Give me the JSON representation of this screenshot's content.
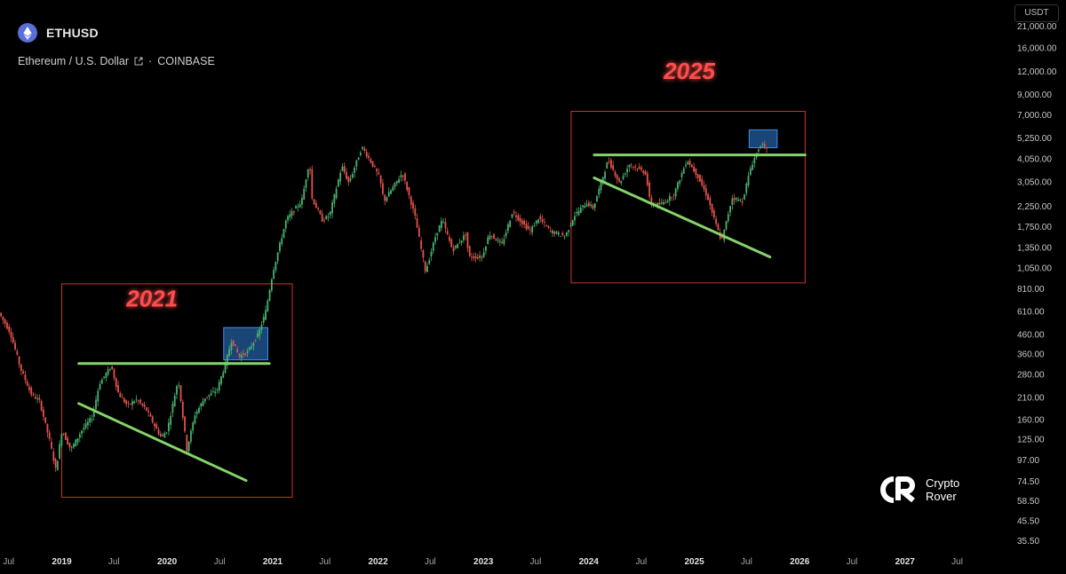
{
  "header": {
    "symbol": "ETHUSD",
    "description": "Ethereum / U.S. Dollar",
    "exchange": "COINBASE",
    "currency_badge": "USDT",
    "logo_icon": "ethereum-icon"
  },
  "watermark": {
    "line1": "Crypto",
    "line2": "Rover",
    "logo_icon": "crypto-rover-logo"
  },
  "colors": {
    "up": "#49b26e",
    "down": "#e5534b",
    "trend": "#84d46a",
    "box": "#c8352f",
    "zone": "#2f7fd8",
    "label": "#ff4d4d"
  },
  "chart_data": {
    "type": "candlestick",
    "scale": "log",
    "xlim": [
      "2018-06-01",
      "2027-10-15"
    ],
    "ylim": [
      31,
      26000
    ],
    "y_ticks": [
      {
        "v": 21000,
        "l": "21,000.00"
      },
      {
        "v": 16000,
        "l": "16,000.00"
      },
      {
        "v": 12000,
        "l": "12,000.00"
      },
      {
        "v": 9000,
        "l": "9,000.00"
      },
      {
        "v": 7000,
        "l": "7,000.00"
      },
      {
        "v": 5250,
        "l": "5,250.00"
      },
      {
        "v": 4050,
        "l": "4,050.00"
      },
      {
        "v": 3050,
        "l": "3,050.00"
      },
      {
        "v": 2250,
        "l": "2,250.00"
      },
      {
        "v": 1750,
        "l": "1,750.00"
      },
      {
        "v": 1350,
        "l": "1,350.00"
      },
      {
        "v": 1050,
        "l": "1,050.00"
      },
      {
        "v": 810,
        "l": "810.00"
      },
      {
        "v": 610,
        "l": "610.00"
      },
      {
        "v": 460,
        "l": "460.00"
      },
      {
        "v": 360,
        "l": "360.00"
      },
      {
        "v": 280,
        "l": "280.00"
      },
      {
        "v": 210,
        "l": "210.00"
      },
      {
        "v": 160,
        "l": "160.00"
      },
      {
        "v": 125,
        "l": "125.00"
      },
      {
        "v": 97,
        "l": "97.00"
      },
      {
        "v": 74.5,
        "l": "74.50"
      },
      {
        "v": 58.5,
        "l": "58.50"
      },
      {
        "v": 45.5,
        "l": "45.50"
      },
      {
        "v": 35.5,
        "l": "35.50"
      }
    ],
    "x_ticks": [
      {
        "t": "2018-07-01",
        "l": "Jul",
        "bold": false
      },
      {
        "t": "2019-01-01",
        "l": "2019",
        "bold": true
      },
      {
        "t": "2019-07-01",
        "l": "Jul",
        "bold": false
      },
      {
        "t": "2020-01-01",
        "l": "2020",
        "bold": true
      },
      {
        "t": "2020-07-01",
        "l": "Jul",
        "bold": false
      },
      {
        "t": "2021-01-01",
        "l": "2021",
        "bold": true
      },
      {
        "t": "2021-07-01",
        "l": "Jul",
        "bold": false
      },
      {
        "t": "2022-01-01",
        "l": "2022",
        "bold": true
      },
      {
        "t": "2022-07-01",
        "l": "Jul",
        "bold": false
      },
      {
        "t": "2023-01-01",
        "l": "2023",
        "bold": true
      },
      {
        "t": "2023-07-01",
        "l": "Jul",
        "bold": false
      },
      {
        "t": "2024-01-01",
        "l": "2024",
        "bold": true
      },
      {
        "t": "2024-07-01",
        "l": "Jul",
        "bold": false
      },
      {
        "t": "2025-01-01",
        "l": "2025",
        "bold": true
      },
      {
        "t": "2025-07-01",
        "l": "Jul",
        "bold": false
      },
      {
        "t": "2026-01-01",
        "l": "2026",
        "bold": true
      },
      {
        "t": "2026-07-01",
        "l": "Jul",
        "bold": false
      },
      {
        "t": "2027-01-01",
        "l": "2027",
        "bold": true
      },
      {
        "t": "2027-07-01",
        "l": "Jul",
        "bold": false
      }
    ],
    "price_path": [
      [
        "2018-06-01",
        600
      ],
      [
        "2018-07-10",
        470
      ],
      [
        "2018-08-15",
        300
      ],
      [
        "2018-09-20",
        220
      ],
      [
        "2018-10-20",
        200
      ],
      [
        "2018-11-25",
        120
      ],
      [
        "2018-12-15",
        85
      ],
      [
        "2019-01-05",
        140
      ],
      [
        "2019-02-05",
        110
      ],
      [
        "2019-03-15",
        140
      ],
      [
        "2019-04-20",
        165
      ],
      [
        "2019-05-15",
        250
      ],
      [
        "2019-06-25",
        310
      ],
      [
        "2019-07-20",
        220
      ],
      [
        "2019-08-20",
        190
      ],
      [
        "2019-09-20",
        205
      ],
      [
        "2019-10-25",
        180
      ],
      [
        "2019-11-20",
        150
      ],
      [
        "2019-12-15",
        128
      ],
      [
        "2020-01-05",
        140
      ],
      [
        "2020-02-12",
        265
      ],
      [
        "2020-03-13",
        110
      ],
      [
        "2020-04-10",
        170
      ],
      [
        "2020-05-15",
        210
      ],
      [
        "2020-06-25",
        230
      ],
      [
        "2020-07-25",
        320
      ],
      [
        "2020-08-15",
        430
      ],
      [
        "2020-09-10",
        350
      ],
      [
        "2020-10-10",
        370
      ],
      [
        "2020-11-15",
        460
      ],
      [
        "2020-12-10",
        600
      ],
      [
        "2021-01-05",
        1000
      ],
      [
        "2021-02-20",
        1900
      ],
      [
        "2021-04-15",
        2400
      ],
      [
        "2021-05-12",
        4000
      ],
      [
        "2021-05-20",
        2500
      ],
      [
        "2021-06-25",
        1900
      ],
      [
        "2021-07-20",
        2000
      ],
      [
        "2021-09-01",
        3700
      ],
      [
        "2021-09-25",
        3000
      ],
      [
        "2021-11-10",
        4700
      ],
      [
        "2021-12-15",
        3800
      ],
      [
        "2022-01-10",
        3200
      ],
      [
        "2022-01-25",
        2400
      ],
      [
        "2022-03-30",
        3400
      ],
      [
        "2022-05-12",
        2000
      ],
      [
        "2022-06-18",
        1000
      ],
      [
        "2022-07-25",
        1600
      ],
      [
        "2022-08-15",
        1900
      ],
      [
        "2022-09-20",
        1300
      ],
      [
        "2022-11-05",
        1600
      ],
      [
        "2022-11-15",
        1200
      ],
      [
        "2022-12-30",
        1200
      ],
      [
        "2023-01-25",
        1600
      ],
      [
        "2023-03-10",
        1400
      ],
      [
        "2023-04-15",
        2100
      ],
      [
        "2023-06-15",
        1650
      ],
      [
        "2023-07-15",
        1950
      ],
      [
        "2023-08-25",
        1650
      ],
      [
        "2023-10-15",
        1550
      ],
      [
        "2023-11-15",
        2000
      ],
      [
        "2023-12-28",
        2350
      ],
      [
        "2024-01-20",
        2200
      ],
      [
        "2024-03-12",
        4000
      ],
      [
        "2024-04-20",
        3000
      ],
      [
        "2024-05-25",
        3800
      ],
      [
        "2024-07-20",
        3400
      ],
      [
        "2024-08-05",
        2300
      ],
      [
        "2024-09-10",
        2300
      ],
      [
        "2024-10-25",
        2600
      ],
      [
        "2024-12-10",
        4000
      ],
      [
        "2025-01-15",
        3300
      ],
      [
        "2025-02-20",
        2500
      ],
      [
        "2025-03-15",
        1900
      ],
      [
        "2025-04-09",
        1450
      ],
      [
        "2025-05-15",
        2500
      ],
      [
        "2025-06-20",
        2400
      ],
      [
        "2025-07-20",
        3700
      ],
      [
        "2025-08-15",
        4600
      ],
      [
        "2025-08-24",
        4900
      ],
      [
        "2025-09-10",
        4500
      ]
    ],
    "annotations": {
      "labels": [
        {
          "text": "2021",
          "t": "2019-11-10",
          "v": 650
        },
        {
          "text": "2025",
          "t": "2024-12-15",
          "v": 10900
        }
      ],
      "boxes": [
        {
          "t1": "2019-01-01",
          "t2": "2021-03-10",
          "v1": 61,
          "v2": 860
        },
        {
          "t1": "2023-11-01",
          "t2": "2026-01-20",
          "v1": 870,
          "v2": 7300
        }
      ],
      "zones": [
        {
          "t1": "2020-07-15",
          "t2": "2020-12-15",
          "v1": 335,
          "v2": 500
        },
        {
          "t1": "2025-07-10",
          "t2": "2025-10-15",
          "v1": 4650,
          "v2": 5800
        }
      ],
      "lines": [
        {
          "t1": "2019-03-01",
          "v1": 320,
          "t2": "2020-12-20",
          "v2": 320
        },
        {
          "t1": "2019-03-01",
          "v1": 195,
          "t2": "2020-10-01",
          "v2": 75
        },
        {
          "t1": "2024-01-20",
          "v1": 4250,
          "t2": "2026-01-20",
          "v2": 4250
        },
        {
          "t1": "2024-01-20",
          "v1": 3200,
          "t2": "2025-09-20",
          "v2": 1200
        }
      ]
    }
  }
}
